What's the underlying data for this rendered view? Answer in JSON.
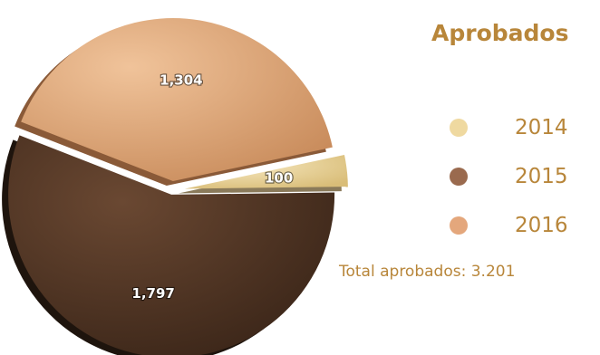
{
  "chart_data": {
    "type": "pie",
    "title": "Aprobados",
    "categories": [
      "2014",
      "2015",
      "2016"
    ],
    "values": [
      100,
      1797,
      1304
    ],
    "value_labels": [
      "100",
      "1,797",
      "1,304"
    ],
    "colors": [
      "#efd9a0",
      "#9a6a4e",
      "#e4a77c"
    ],
    "legend_position": "right",
    "exploded": true
  },
  "total_label": "Total aprobados: 3.201"
}
